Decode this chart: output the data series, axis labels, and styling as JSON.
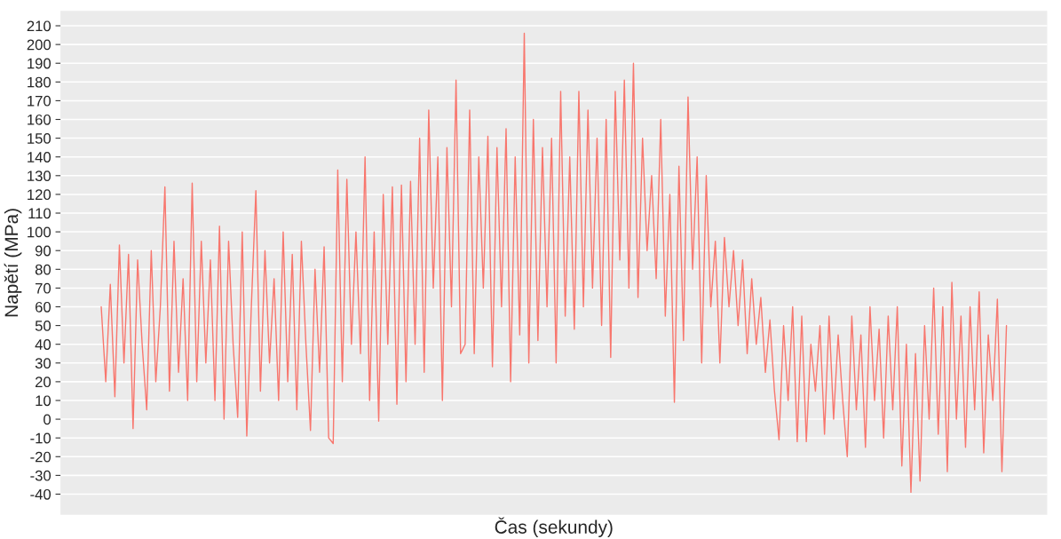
{
  "chart_data": {
    "type": "line",
    "xlabel": "Čas (sekundy)",
    "ylabel": "Napětí (MPa)",
    "categories": [
      null,
      null,
      null,
      null,
      null,
      null,
      null,
      null,
      null,
      null,
      null,
      null,
      null,
      null,
      null,
      null,
      null,
      null,
      null,
      null,
      null,
      null,
      null,
      null,
      null,
      null,
      null,
      null,
      null,
      null,
      null,
      null,
      null,
      null,
      null,
      null,
      null,
      null,
      null,
      null,
      null,
      null,
      null,
      null,
      null,
      null,
      null,
      null,
      null,
      null,
      null,
      null,
      null,
      null,
      null,
      null,
      null,
      null,
      null,
      null,
      null,
      null,
      null,
      null,
      null,
      null,
      null,
      null,
      null,
      null,
      null,
      null,
      null,
      null,
      null,
      null,
      null,
      null,
      null,
      null,
      null,
      null,
      null,
      null,
      null,
      null,
      null,
      null,
      null,
      null,
      null,
      null,
      null,
      null,
      null,
      null,
      null,
      null,
      null,
      null,
      null,
      null,
      null,
      null,
      null,
      null,
      null,
      null,
      null,
      null,
      null,
      null,
      null,
      null,
      null,
      null,
      null,
      null,
      null,
      null,
      null,
      null,
      null,
      null,
      null,
      null,
      null,
      null,
      null,
      null,
      null,
      null,
      null,
      null,
      null,
      null,
      null,
      null,
      null,
      null,
      null,
      null,
      null,
      null,
      null,
      null,
      null,
      null,
      null,
      null,
      null,
      null,
      null,
      null,
      null,
      null,
      null,
      null,
      null,
      null,
      null,
      null,
      null,
      null,
      null,
      null,
      null,
      null,
      null,
      null,
      null,
      null,
      null,
      null,
      null,
      null,
      null,
      null,
      null,
      null,
      null,
      null,
      null,
      null,
      null,
      null,
      null,
      null,
      null,
      null,
      null,
      null,
      null,
      null,
      null,
      null,
      null,
      null,
      null,
      null
    ],
    "series": [
      {
        "color": "#f8766d",
        "values": [
          60,
          20,
          72,
          12,
          93,
          30,
          88,
          -5,
          85,
          40,
          5,
          90,
          20,
          60,
          124,
          15,
          95,
          25,
          75,
          10,
          126,
          20,
          95,
          30,
          85,
          10,
          103,
          0,
          95,
          40,
          1,
          100,
          -9,
          60,
          122,
          15,
          90,
          30,
          75,
          10,
          100,
          20,
          88,
          5,
          95,
          40,
          -6,
          80,
          25,
          92,
          -10,
          -13,
          133,
          20,
          128,
          40,
          100,
          35,
          140,
          10,
          100,
          -1,
          120,
          40,
          124,
          8,
          125,
          20,
          127,
          40,
          150,
          25,
          165,
          70,
          140,
          10,
          145,
          60,
          181,
          35,
          40,
          165,
          35,
          140,
          70,
          151,
          28,
          145,
          60,
          155,
          20,
          140,
          45,
          206,
          30,
          160,
          42,
          145,
          60,
          150,
          30,
          175,
          55,
          140,
          48,
          175,
          60,
          165,
          70,
          150,
          50,
          160,
          33,
          175,
          85,
          181,
          70,
          190,
          65,
          150,
          90,
          130,
          75,
          160,
          55,
          120,
          9,
          135,
          42,
          172,
          80,
          140,
          30,
          130,
          60,
          95,
          30,
          97,
          60,
          90,
          50,
          85,
          35,
          75,
          40,
          65,
          25,
          53,
          15,
          -11,
          50,
          10,
          60,
          -12,
          55,
          -12,
          40,
          15,
          50,
          -8,
          55,
          0,
          45,
          10,
          -20,
          55,
          5,
          45,
          -15,
          60,
          10,
          48,
          -10,
          55,
          5,
          60,
          -25,
          40,
          -39,
          35,
          -33,
          50,
          0,
          70,
          -8,
          60,
          -28,
          73,
          0,
          55,
          -15,
          60,
          5,
          68,
          -18,
          45,
          10,
          64,
          -28,
          50
        ]
      }
    ],
    "ylim": [
      -51,
      218
    ],
    "yticks": [
      -40,
      -30,
      -20,
      -10,
      0,
      10,
      20,
      30,
      40,
      50,
      60,
      70,
      80,
      90,
      100,
      110,
      120,
      130,
      140,
      150,
      160,
      170,
      180,
      190,
      200,
      210
    ],
    "grid": "y",
    "tick_labels": "y"
  }
}
